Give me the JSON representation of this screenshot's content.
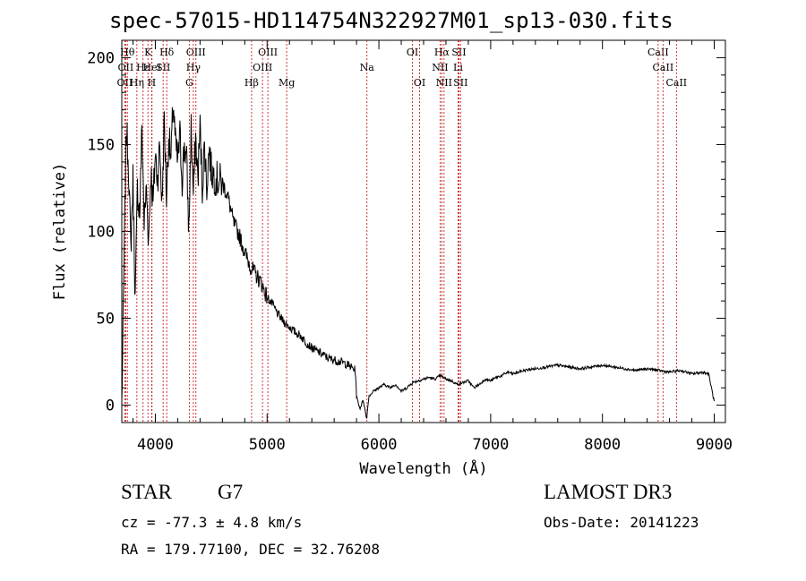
{
  "chart_data": {
    "type": "line",
    "title": "spec-57015-HD114754N322927M01_sp13-030.fits",
    "xlabel": "Wavelength (Å)",
    "ylabel": "Flux (relative)",
    "xlim": [
      3700,
      9100
    ],
    "ylim": [
      -10,
      210
    ],
    "xticks": [
      4000,
      5000,
      6000,
      7000,
      8000,
      9000
    ],
    "xtick_labels": [
      "4000",
      "5000",
      "6000",
      "7000",
      "8000",
      "9000"
    ],
    "yticks": [
      0,
      50,
      100,
      150,
      200
    ],
    "ytick_labels": [
      "0",
      "50",
      "100",
      "150",
      "200"
    ],
    "series": [
      {
        "name": "flux",
        "x": [
          3700,
          3720,
          3740,
          3760,
          3780,
          3800,
          3820,
          3840,
          3860,
          3880,
          3900,
          3920,
          3940,
          3960,
          3980,
          4000,
          4020,
          4040,
          4060,
          4080,
          4100,
          4120,
          4140,
          4160,
          4180,
          4200,
          4220,
          4240,
          4260,
          4280,
          4300,
          4320,
          4340,
          4360,
          4380,
          4400,
          4420,
          4440,
          4460,
          4480,
          4500,
          4550,
          4600,
          4650,
          4700,
          4750,
          4800,
          4850,
          4900,
          4950,
          5000,
          5050,
          5100,
          5150,
          5200,
          5250,
          5300,
          5350,
          5400,
          5450,
          5500,
          5550,
          5600,
          5650,
          5700,
          5750,
          5790,
          5800,
          5830,
          5860,
          5890,
          5910,
          5950,
          6000,
          6050,
          6100,
          6150,
          6200,
          6250,
          6300,
          6350,
          6400,
          6450,
          6500,
          6550,
          6600,
          6650,
          6700,
          6750,
          6800,
          6850,
          6900,
          6950,
          7000,
          7050,
          7100,
          7150,
          7200,
          7300,
          7400,
          7500,
          7600,
          7700,
          7800,
          7900,
          8000,
          8100,
          8200,
          8300,
          8400,
          8500,
          8600,
          8700,
          8800,
          8900,
          8950,
          9000
        ],
        "values": [
          0,
          80,
          160,
          140,
          90,
          130,
          60,
          125,
          110,
          160,
          105,
          125,
          95,
          135,
          115,
          145,
          130,
          150,
          115,
          165,
          120,
          155,
          140,
          175,
          150,
          140,
          155,
          130,
          150,
          140,
          100,
          160,
          120,
          155,
          130,
          160,
          125,
          150,
          125,
          148,
          135,
          130,
          128,
          120,
          105,
          98,
          88,
          80,
          75,
          70,
          62,
          58,
          52,
          48,
          45,
          42,
          40,
          36,
          33,
          31,
          29,
          27,
          26,
          25,
          24,
          22,
          20,
          5,
          -2,
          3,
          -8,
          5,
          8,
          10,
          12,
          10,
          12,
          8,
          10,
          13,
          14,
          15,
          16,
          15,
          17,
          15,
          14,
          12,
          13,
          14,
          10,
          12,
          15,
          14,
          16,
          17,
          19,
          18,
          20,
          21,
          22,
          23,
          22,
          21,
          22,
          23,
          22,
          21,
          20,
          21,
          20,
          19,
          20,
          18,
          19,
          18,
          2
        ]
      }
    ],
    "line_markers": [
      {
        "label": "OII",
        "wavelength": 3727,
        "row": 3
      },
      {
        "label": "Hθ",
        "wavelength": 3750,
        "row": 1
      },
      {
        "label": "OII",
        "wavelength": 3735,
        "row": 2
      },
      {
        "label": "Hε",
        "wavelength": 3890,
        "row": 2
      },
      {
        "label": "Hη",
        "wavelength": 3835,
        "row": 3
      },
      {
        "label": "K",
        "wavelength": 3934,
        "row": 1
      },
      {
        "label": "H",
        "wavelength": 3968,
        "row": 3
      },
      {
        "label": "HeI",
        "wavelength": 3970,
        "row": 2
      },
      {
        "label": "SII",
        "wavelength": 4070,
        "row": 2
      },
      {
        "label": "Hδ",
        "wavelength": 4102,
        "row": 1
      },
      {
        "label": "OIII",
        "wavelength": 4363,
        "row": 1
      },
      {
        "label": "Hγ",
        "wavelength": 4340,
        "row": 2
      },
      {
        "label": "G",
        "wavelength": 4304,
        "row": 3
      },
      {
        "label": "Hβ",
        "wavelength": 4861,
        "row": 3
      },
      {
        "label": "OIII",
        "wavelength": 5007,
        "row": 1
      },
      {
        "label": "OIII",
        "wavelength": 4959,
        "row": 2
      },
      {
        "label": "Mg",
        "wavelength": 5175,
        "row": 3
      },
      {
        "label": "Na",
        "wavelength": 5893,
        "row": 2
      },
      {
        "label": "OI",
        "wavelength": 6300,
        "row": 1
      },
      {
        "label": "OI",
        "wavelength": 6364,
        "row": 3
      },
      {
        "label": "Hα",
        "wavelength": 6563,
        "row": 1
      },
      {
        "label": "NII",
        "wavelength": 6548,
        "row": 2
      },
      {
        "label": "NII",
        "wavelength": 6583,
        "row": 3
      },
      {
        "label": "SII",
        "wavelength": 6716,
        "row": 1
      },
      {
        "label": "Li",
        "wavelength": 6708,
        "row": 2
      },
      {
        "label": "SII",
        "wavelength": 6731,
        "row": 3
      },
      {
        "label": "CaII",
        "wavelength": 8498,
        "row": 1
      },
      {
        "label": "CaII",
        "wavelength": 8542,
        "row": 2
      },
      {
        "label": "CaII",
        "wavelength": 8662,
        "row": 3
      }
    ]
  },
  "info": {
    "object_class": "STAR",
    "subclass": "G7",
    "survey": "LAMOST DR3",
    "cz": "cz = -77.3 ± 4.8 km/s",
    "obs_date": "Obs-Date: 20141223",
    "coords": "RA = 179.77100, DEC =  32.76208"
  }
}
